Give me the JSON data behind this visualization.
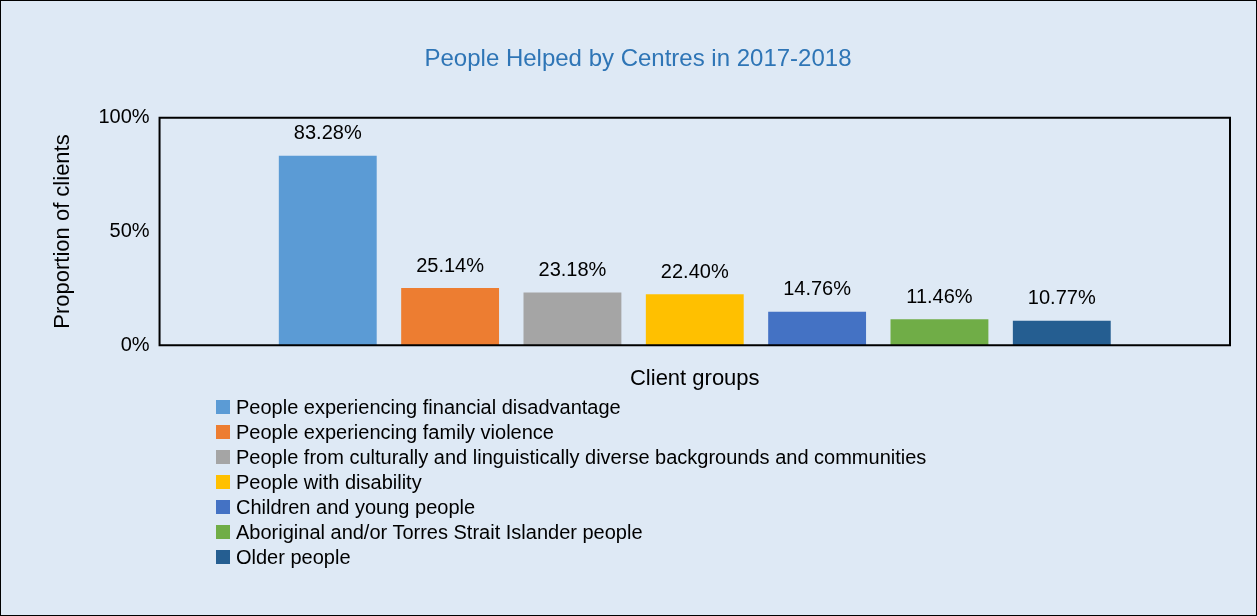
{
  "chart_data": {
    "type": "bar",
    "title": "People Helped by Centres in 2017-2018",
    "xlabel": "Client groups",
    "ylabel": "Proportion of clients",
    "categories": [
      null
    ],
    "series": [
      {
        "name": "People experiencing financial disadvantage",
        "color": "#5b9bd5",
        "values": [
          83.28
        ],
        "value_labels": [
          "83.28%"
        ]
      },
      {
        "name": "People experiencing family violence",
        "color": "#ed7d31",
        "values": [
          25.14
        ],
        "value_labels": [
          "25.14%"
        ]
      },
      {
        "name": "People from culturally and linguistically diverse backgrounds and communities",
        "color": "#a5a5a5",
        "values": [
          23.18
        ],
        "value_labels": [
          "23.18%"
        ]
      },
      {
        "name": "People with disability",
        "color": "#ffc000",
        "values": [
          22.4
        ],
        "value_labels": [
          "22.40%"
        ]
      },
      {
        "name": "Children and young people",
        "color": "#4472c4",
        "values": [
          14.76
        ],
        "value_labels": [
          "14.76%"
        ]
      },
      {
        "name": "Aboriginal and/or Torres Strait Islander people",
        "color": "#70ad47",
        "values": [
          11.46
        ],
        "value_labels": [
          "11.46%"
        ]
      },
      {
        "name": "Older people",
        "color": "#255e91",
        "values": [
          10.77
        ],
        "value_labels": [
          "10.77%"
        ]
      }
    ],
    "ylim": [
      0,
      100
    ],
    "yticks": [
      {
        "value": 0,
        "label": "0%"
      },
      {
        "value": 50,
        "label": "50%"
      },
      {
        "value": 100,
        "label": "100%"
      }
    ],
    "grid": false,
    "legend": "bottom"
  }
}
